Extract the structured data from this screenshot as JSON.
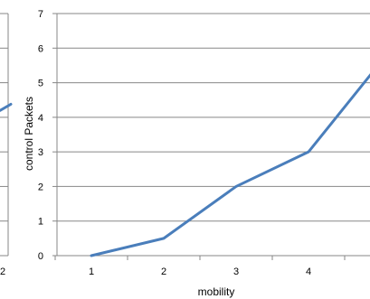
{
  "chart_data": [
    {
      "type": "line",
      "partial": true,
      "xlabel": "",
      "ylabel": "",
      "x_tick_labels": [
        "2"
      ],
      "y_tick_labels": [
        "",
        "",
        "",
        "",
        "",
        "",
        "",
        ""
      ],
      "series": [
        {
          "values": [
            4.3
          ],
          "color": "#4a7ebb"
        }
      ]
    },
    {
      "type": "line",
      "xlabel": "mobility",
      "ylabel": "control Packets",
      "x": [
        1,
        2,
        3,
        4,
        5
      ],
      "x_tick_labels": [
        "1",
        "2",
        "3",
        "4",
        ""
      ],
      "y_tick_labels": [
        "0",
        "1",
        "2",
        "3",
        "4",
        "5",
        "6",
        "7"
      ],
      "ylim": [
        0,
        7
      ],
      "grid": true,
      "series": [
        {
          "values": [
            0,
            0.5,
            2,
            3,
            5.6
          ],
          "color": "#4a7ebb"
        }
      ]
    }
  ]
}
